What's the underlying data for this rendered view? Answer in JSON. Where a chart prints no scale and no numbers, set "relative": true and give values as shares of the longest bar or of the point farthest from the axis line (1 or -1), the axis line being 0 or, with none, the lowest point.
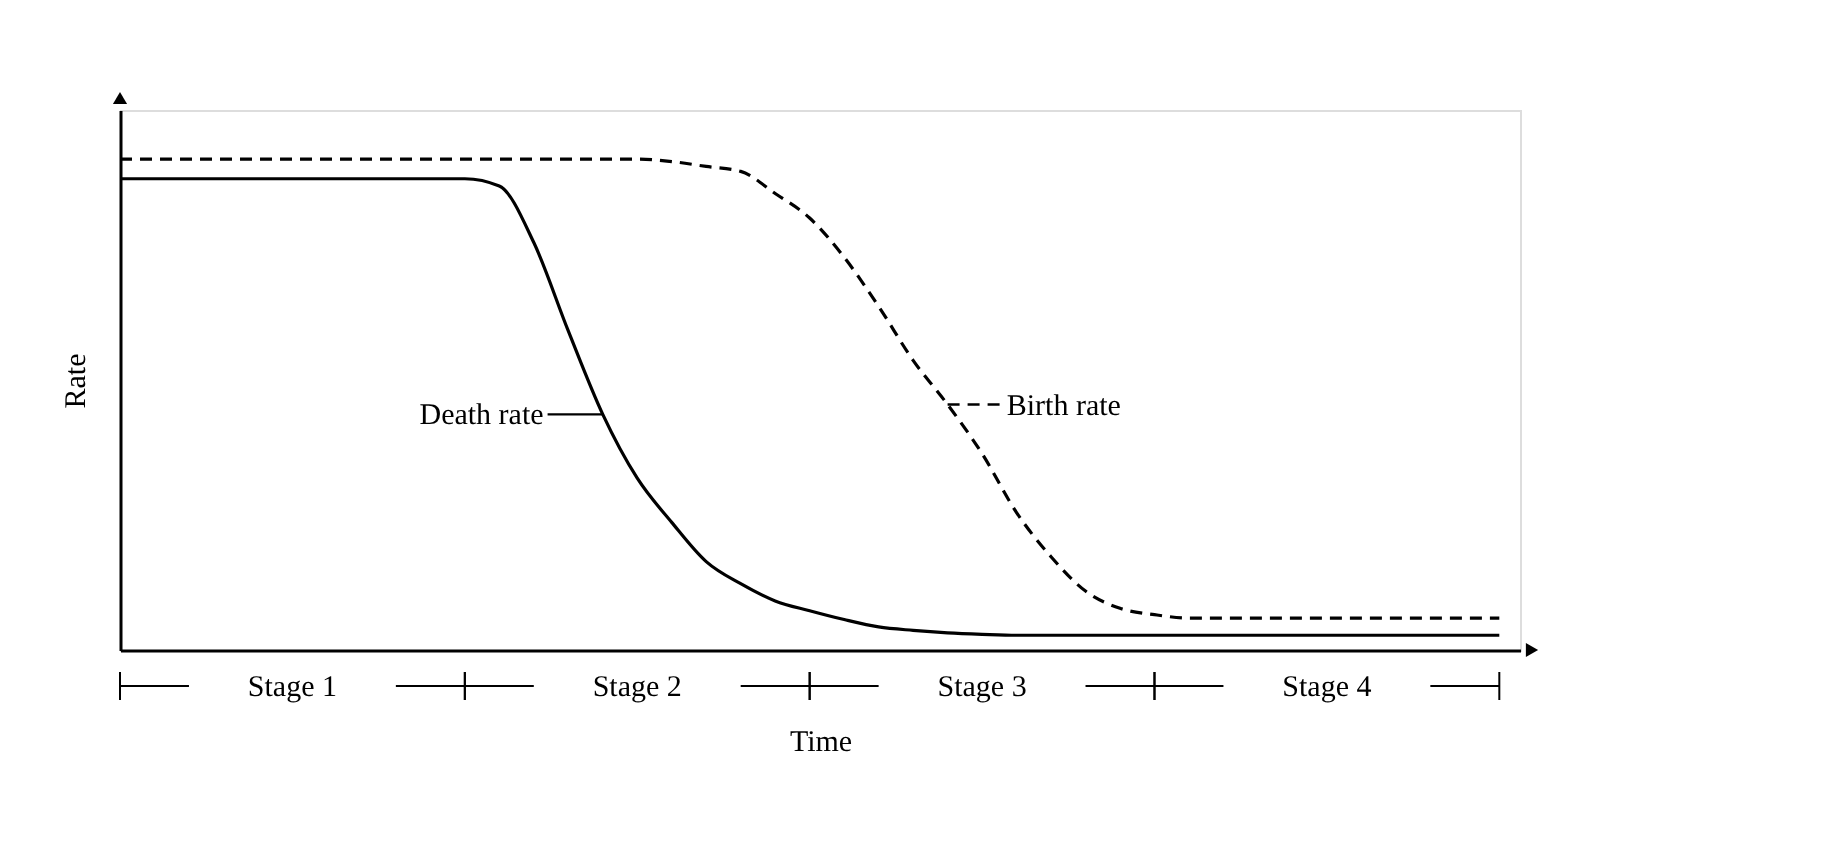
{
  "chart_data": {
    "type": "line",
    "relative": true,
    "xlabel": "Time",
    "ylabel": "Rate",
    "tick_labels": false,
    "grid": false,
    "categories": [
      null,
      null,
      null,
      null,
      null,
      null,
      null,
      null,
      null,
      null,
      null,
      null,
      null,
      null,
      null,
      null,
      null,
      null,
      null,
      null,
      null,
      null,
      null,
      null,
      null,
      null,
      null,
      null,
      null,
      null,
      null,
      null,
      null,
      null,
      null,
      null,
      null,
      null,
      null,
      null,
      null
    ],
    "series": [
      {
        "name": "Death rate",
        "color": "#000000",
        "line_style": "solid",
        "values": [
          0.96,
          0.96,
          0.96,
          0.96,
          0.96,
          0.96,
          0.96,
          0.96,
          0.96,
          0.96,
          0.96,
          0.945,
          0.83,
          0.65,
          0.48,
          0.35,
          0.26,
          0.18,
          0.135,
          0.1,
          0.08,
          0.062,
          0.047,
          0.04,
          0.035,
          0.032,
          0.03,
          0.03,
          0.03,
          0.03,
          0.03,
          0.03,
          0.03,
          0.03,
          0.03,
          0.03,
          0.03,
          0.03,
          0.03,
          0.03,
          0.03
        ]
      },
      {
        "name": "Birth rate",
        "color": "#000000",
        "line_style": "dashed",
        "values": [
          1,
          1,
          1,
          1,
          1,
          1,
          1,
          1,
          1,
          1,
          1,
          1,
          1,
          1,
          1,
          1,
          0.995,
          0.985,
          0.975,
          0.93,
          0.88,
          0.8,
          0.7,
          0.59,
          0.5,
          0.4,
          0.28,
          0.19,
          0.12,
          0.085,
          0.072,
          0.065,
          0.065,
          0.065,
          0.065,
          0.065,
          0.065,
          0.065,
          0.065,
          0.065,
          0.065
        ]
      }
    ],
    "annotations": [
      "Stage 1",
      "Stage 2",
      "Stage 3",
      "Stage 4"
    ]
  }
}
